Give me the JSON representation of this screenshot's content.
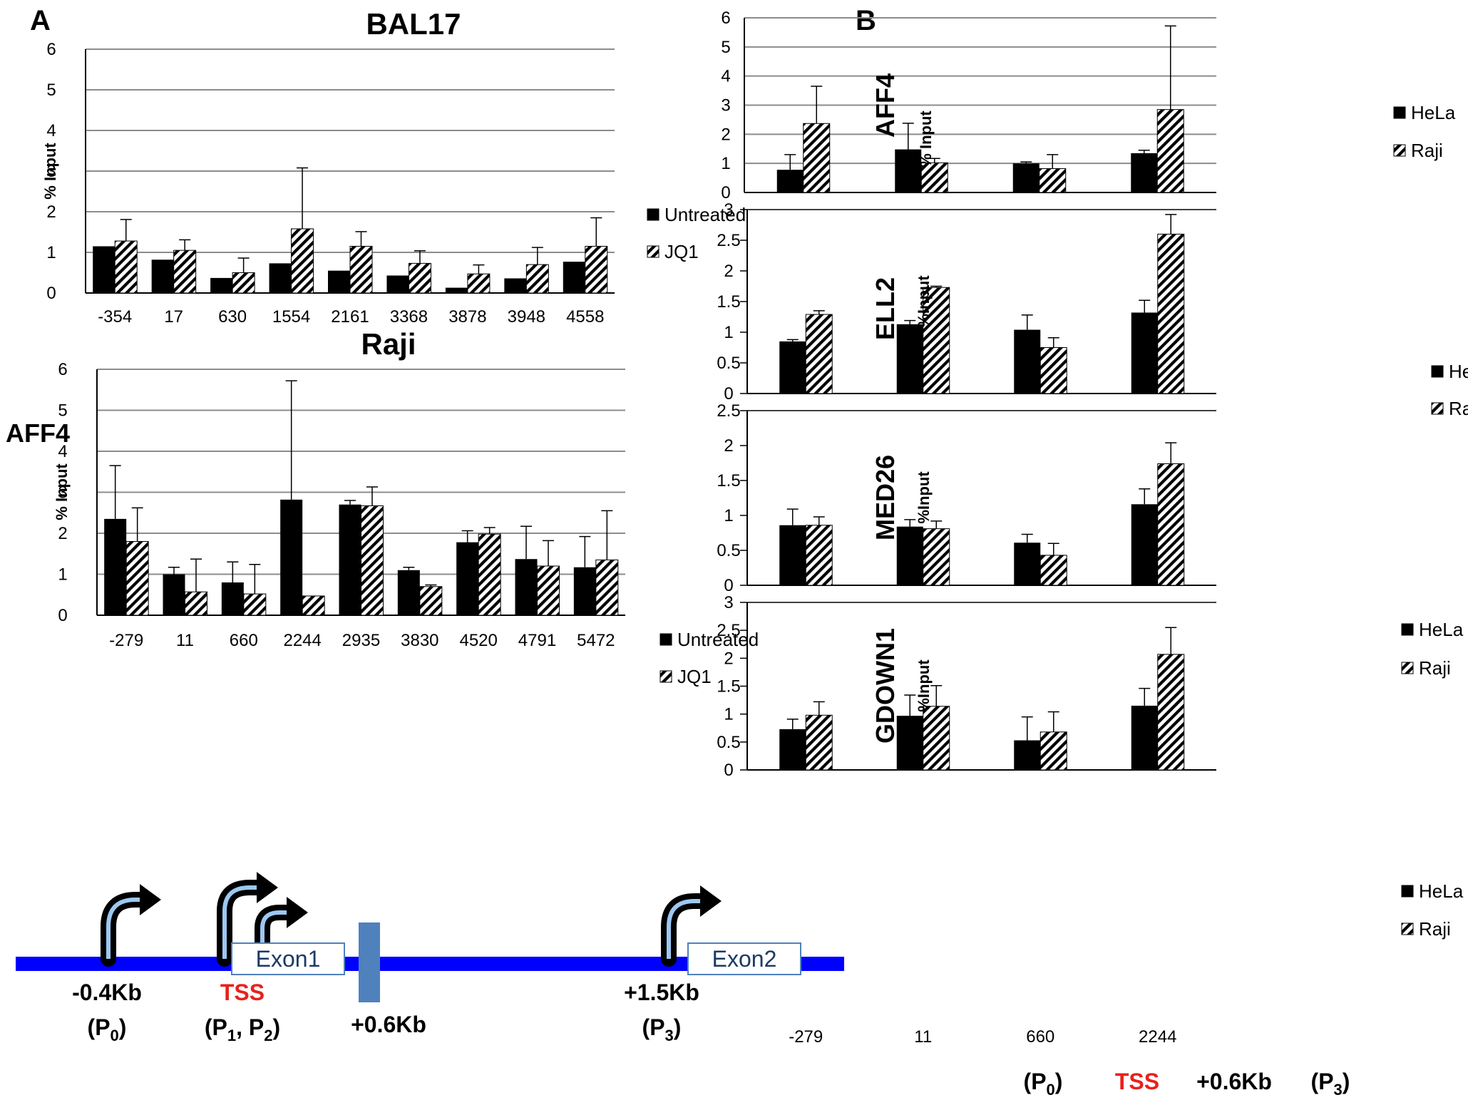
{
  "panel_a": {
    "letter": "A",
    "row_label": "AFF4"
  },
  "panel_b": {
    "letter": "B"
  },
  "colors": {
    "bar_dark": "#000000",
    "gridline": "#8c8c8c",
    "gene_line": "#0000ff",
    "gene_block": "#4f81bd",
    "tss_red": "#e8211c"
  },
  "chart_data": [
    {
      "id": "bal17",
      "type": "bar",
      "title": "BAL17",
      "ylabel": "% Input",
      "ylim": [
        0,
        6
      ],
      "yticks": [
        0,
        1,
        2,
        3,
        4,
        5,
        6
      ],
      "categories": [
        "-354",
        "17",
        "630",
        "1554",
        "2161",
        "3368",
        "3878",
        "3948",
        "4558"
      ],
      "series": [
        {
          "name": "Untreated",
          "pattern": "solid",
          "values": [
            1.15,
            0.82,
            0.37,
            0.73,
            0.55,
            0.43,
            0.13,
            0.36,
            0.77
          ],
          "errors": [
            0,
            0,
            0,
            0,
            0,
            0,
            0,
            0,
            0
          ]
        },
        {
          "name": "JQ1",
          "pattern": "hatch",
          "values": [
            1.28,
            1.05,
            0.5,
            1.58,
            1.15,
            0.73,
            0.47,
            0.7,
            1.15
          ],
          "errors": [
            0.53,
            0.26,
            0.36,
            1.5,
            0.36,
            0.31,
            0.22,
            0.42,
            0.7
          ]
        }
      ],
      "legend_position": "right",
      "grid": true
    },
    {
      "id": "raji",
      "type": "bar",
      "title": "Raji",
      "ylabel": "% Input",
      "ylim": [
        0,
        6
      ],
      "yticks": [
        0,
        1,
        2,
        3,
        4,
        5,
        6
      ],
      "categories": [
        "-279",
        "11",
        "660",
        "2244",
        "2935",
        "3830",
        "4520",
        "4791",
        "5472"
      ],
      "series": [
        {
          "name": "Untreated",
          "pattern": "solid",
          "values": [
            2.35,
            1.0,
            0.8,
            2.82,
            2.7,
            1.1,
            1.78,
            1.37,
            1.17
          ],
          "errors": [
            1.3,
            0.17,
            0.5,
            2.9,
            0.1,
            0.07,
            0.28,
            0.8,
            0.75
          ]
        },
        {
          "name": "JQ1",
          "pattern": "hatch",
          "values": [
            1.8,
            0.57,
            0.52,
            0.47,
            2.67,
            0.7,
            1.98,
            1.2,
            1.35
          ],
          "errors": [
            0.82,
            0.8,
            0.72,
            0,
            0.46,
            0.04,
            0.16,
            0.62,
            1.2
          ]
        }
      ],
      "legend_position": "right",
      "grid": true
    },
    {
      "id": "aff4_b",
      "type": "bar",
      "row_label": "AFF4",
      "ylabel": "% Input",
      "ylim": [
        0,
        6
      ],
      "yticks": [
        0,
        1,
        2,
        3,
        4,
        5,
        6
      ],
      "categories": [
        "-279",
        "11",
        "660",
        "2244"
      ],
      "series": [
        {
          "name": "HeLa",
          "pattern": "solid",
          "values": [
            0.78,
            1.48,
            1.0,
            1.35
          ],
          "errors": [
            0.52,
            0.9,
            0.05,
            0.1
          ]
        },
        {
          "name": "Raji",
          "pattern": "hatch",
          "values": [
            2.37,
            1.02,
            0.82,
            2.85
          ],
          "errors": [
            1.28,
            0.15,
            0.48,
            2.87
          ]
        }
      ],
      "legend_position": "right",
      "grid": true
    },
    {
      "id": "ell2_b",
      "type": "bar",
      "row_label": "ELL2",
      "ylabel": "%Input",
      "ylim": [
        0,
        3
      ],
      "yticks": [
        0,
        0.5,
        1,
        1.5,
        2,
        2.5,
        3
      ],
      "categories": [
        "-279",
        "11",
        "660",
        "2244"
      ],
      "series": [
        {
          "name": "HeLa",
          "pattern": "solid",
          "values": [
            0.85,
            1.13,
            1.04,
            1.32
          ],
          "errors": [
            0.03,
            0.06,
            0.24,
            0.2
          ]
        },
        {
          "name": "Raji",
          "pattern": "hatch",
          "values": [
            1.29,
            1.73,
            0.75,
            2.6
          ],
          "errors": [
            0.06,
            0.02,
            0.16,
            0.32
          ]
        }
      ],
      "legend_position": "right",
      "grid": false
    },
    {
      "id": "med26_b",
      "type": "bar",
      "row_label": "MED26",
      "ylabel": "%Input",
      "ylim": [
        0,
        2.5
      ],
      "yticks": [
        0,
        0.5,
        1,
        1.5,
        2,
        2.5
      ],
      "categories": [
        "-279",
        "11",
        "660",
        "2244"
      ],
      "series": [
        {
          "name": "HeLa",
          "pattern": "solid",
          "values": [
            0.86,
            0.84,
            0.61,
            1.16
          ],
          "errors": [
            0.23,
            0.1,
            0.12,
            0.22
          ]
        },
        {
          "name": "Raji",
          "pattern": "hatch",
          "values": [
            0.86,
            0.81,
            0.43,
            1.74
          ],
          "errors": [
            0.12,
            0.11,
            0.17,
            0.3
          ]
        }
      ],
      "legend_position": "right",
      "grid": false
    },
    {
      "id": "gdown1_b",
      "type": "bar",
      "row_label": "GDOWN1",
      "ylabel": "%Input",
      "ylim": [
        0,
        3
      ],
      "yticks": [
        0,
        0.5,
        1,
        1.5,
        2,
        2.5,
        3
      ],
      "categories": [
        "-279",
        "11",
        "660",
        "2244"
      ],
      "series": [
        {
          "name": "HeLa",
          "pattern": "solid",
          "values": [
            0.73,
            0.97,
            0.53,
            1.15
          ],
          "errors": [
            0.18,
            0.37,
            0.42,
            0.31
          ]
        },
        {
          "name": "Raji",
          "pattern": "hatch",
          "values": [
            0.98,
            1.14,
            0.68,
            2.07
          ],
          "errors": [
            0.24,
            0.37,
            0.36,
            0.48
          ]
        }
      ],
      "legend_position": "right",
      "grid": false
    }
  ],
  "gene_diagram": {
    "exons": [
      "Exon1",
      "Exon2"
    ],
    "sites": [
      {
        "line1": "-0.4Kb",
        "line2_main": "(P",
        "line2_sub": "0",
        "line2_end": ")"
      },
      {
        "line1": "TSS",
        "line2_main": "(P",
        "line2_sub": "1",
        "line2_mid": ", P",
        "line2_sub2": "2",
        "line2_end": ")"
      },
      {
        "line1": "+0.6Kb"
      },
      {
        "line1": "+1.5Kb",
        "line2_main": "(P",
        "line2_sub": "3",
        "line2_end": ")"
      }
    ]
  },
  "panel_b_footer": [
    {
      "main": "(P",
      "sub": "0",
      "end": ")"
    },
    {
      "main": "TSS"
    },
    {
      "main": "+0.6Kb"
    },
    {
      "main": "(P",
      "sub": "3",
      "end": ")"
    }
  ]
}
